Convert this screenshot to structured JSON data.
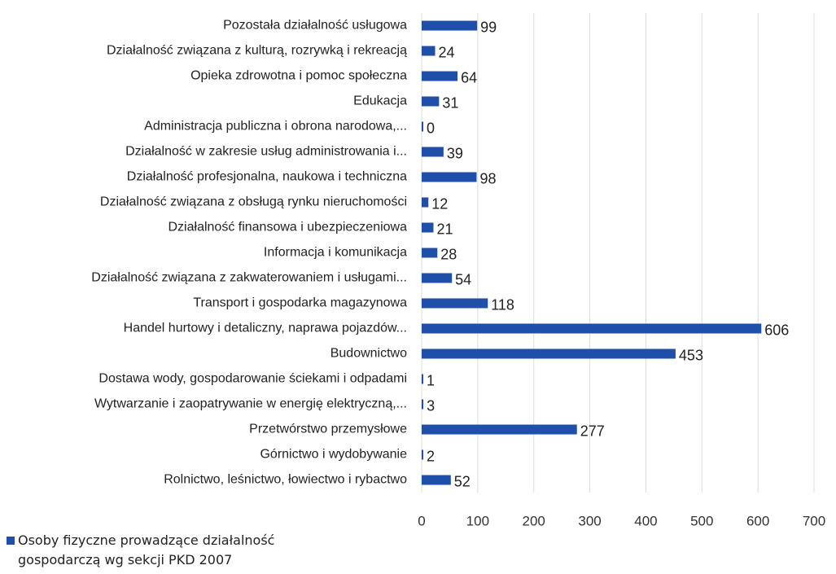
{
  "chart_data": {
    "type": "bar",
    "orientation": "horizontal",
    "categories": [
      "Pozostała działalność usługowa",
      "Działalność związana z kulturą, rozrywką i rekreacją",
      "Opieka zdrowotna i pomoc społeczna",
      "Edukacja",
      "Administracja publiczna i obrona narodowa,...",
      "Działalność w zakresie usług administrowania i...",
      "Działalność profesjonalna, naukowa i techniczna",
      "Działalność związana z obsługą rynku nieruchomości",
      "Działalność finansowa i ubezpieczeniowa",
      "Informacja i komunikacja",
      "Działalność związana z zakwaterowaniem i usługami...",
      "Transport i gospodarka magazynowa",
      "Handel hurtowy i detaliczny, naprawa pojazdów...",
      "Budownictwo",
      "Dostawa wody, gospodarowanie ściekami i odpadami",
      "Wytwarzanie i zaopatrywanie w energię elektryczną,...",
      "Przetwórstwo przemysłowe",
      "Górnictwo i wydobywanie",
      "Rolnictwo, leśnictwo, łowiectwo i rybactwo"
    ],
    "series": [
      {
        "name": "Osoby fizyczne prowadzące działalność gospodarczą wg sekcji PKD 2007",
        "color": "#1f4fa8",
        "values": [
          99,
          24,
          64,
          31,
          0,
          39,
          98,
          12,
          21,
          28,
          54,
          118,
          606,
          453,
          1,
          3,
          277,
          2,
          52
        ]
      }
    ],
    "xlim": [
      0,
      700
    ],
    "xticks": [
      0,
      100,
      200,
      300,
      400,
      500,
      600,
      700
    ],
    "grid": true,
    "legend": "bottom-left"
  }
}
